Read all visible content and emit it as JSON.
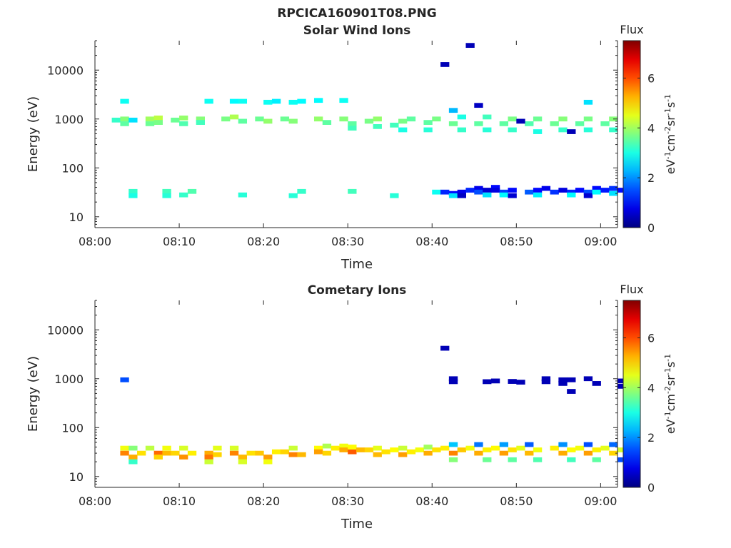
{
  "figure_title": "RPCICA160901T08.PNG",
  "chart_data": [
    {
      "type": "heatmap",
      "title": "Solar Wind Ions",
      "xlabel": "Time",
      "ylabel": "Energy (eV)",
      "yscale": "log",
      "xlim": [
        "08:00",
        "09:02"
      ],
      "ylim": [
        6,
        40000
      ],
      "xticks": [
        "08:00",
        "08:10",
        "08:20",
        "08:30",
        "08:40",
        "08:50",
        "09:00"
      ],
      "yticks": [
        "10",
        "100",
        "1000",
        "10000"
      ],
      "colorbar": {
        "title": "Flux",
        "label": "eV-1cm-2sr-1s-1",
        "range": [
          0,
          7.5
        ],
        "ticks": [
          "0",
          "2",
          "4",
          "6"
        ],
        "colormap": "jet"
      },
      "cells": [
        [
          "08:02",
          950,
          3.2
        ],
        [
          "08:03",
          1000,
          3.8
        ],
        [
          "08:03",
          800,
          3.5
        ],
        [
          "08:03",
          2300,
          2.9
        ],
        [
          "08:04",
          950,
          2.6
        ],
        [
          "08:06",
          1000,
          4.0
        ],
        [
          "08:06",
          800,
          3.6
        ],
        [
          "08:07",
          1050,
          4.2
        ],
        [
          "08:07",
          850,
          3.7
        ],
        [
          "08:09",
          950,
          3.6
        ],
        [
          "08:10",
          1050,
          3.9
        ],
        [
          "08:10",
          800,
          3.4
        ],
        [
          "08:12",
          1000,
          3.8
        ],
        [
          "08:12",
          850,
          3.3
        ],
        [
          "08:13",
          2300,
          2.9
        ],
        [
          "08:15",
          1000,
          3.7
        ],
        [
          "08:16",
          1100,
          4.1
        ],
        [
          "08:16",
          2300,
          2.8
        ],
        [
          "08:17",
          2300,
          2.9
        ],
        [
          "08:17",
          900,
          3.5
        ],
        [
          "08:19",
          1000,
          3.6
        ],
        [
          "08:20",
          900,
          3.9
        ],
        [
          "08:20",
          2200,
          2.9
        ],
        [
          "08:21",
          2300,
          2.7
        ],
        [
          "08:22",
          1000,
          3.6
        ],
        [
          "08:23",
          900,
          3.8
        ],
        [
          "08:23",
          2200,
          2.9
        ],
        [
          "08:24",
          2300,
          2.8
        ],
        [
          "08:26",
          1000,
          3.9
        ],
        [
          "08:26",
          2400,
          2.8
        ],
        [
          "08:27",
          850,
          3.5
        ],
        [
          "08:29",
          1000,
          3.8
        ],
        [
          "08:29",
          2400,
          2.9
        ],
        [
          "08:30",
          800,
          3.5
        ],
        [
          "08:30",
          650,
          3.3
        ],
        [
          "08:32",
          900,
          3.7
        ],
        [
          "08:33",
          700,
          3.3
        ],
        [
          "08:33",
          1000,
          3.9
        ],
        [
          "08:35",
          750,
          3.3
        ],
        [
          "08:36",
          900,
          3.7
        ],
        [
          "08:36",
          600,
          3.0
        ],
        [
          "08:37",
          1000,
          3.5
        ],
        [
          "08:39",
          850,
          3.5
        ],
        [
          "08:39",
          600,
          3.1
        ],
        [
          "08:40",
          1000,
          3.7
        ],
        [
          "08:42",
          800,
          3.6
        ],
        [
          "08:43",
          600,
          3.2
        ],
        [
          "08:43",
          1100,
          3.0
        ],
        [
          "08:42",
          1500,
          2.3
        ],
        [
          "08:45",
          800,
          3.5
        ],
        [
          "08:46",
          600,
          3.1
        ],
        [
          "08:46",
          1100,
          3.3
        ],
        [
          "08:45",
          1900,
          0.5
        ],
        [
          "08:48",
          800,
          3.5
        ],
        [
          "08:49",
          1000,
          3.7
        ],
        [
          "08:49",
          600,
          3.2
        ],
        [
          "08:51",
          800,
          3.4
        ],
        [
          "08:52",
          1000,
          3.6
        ],
        [
          "08:52",
          550,
          3.0
        ],
        [
          "08:50",
          900,
          0.4
        ],
        [
          "08:54",
          800,
          3.6
        ],
        [
          "08:55",
          1000,
          3.8
        ],
        [
          "08:55",
          600,
          3.2
        ],
        [
          "08:56",
          550,
          0.4
        ],
        [
          "08:57",
          800,
          3.5
        ],
        [
          "08:58",
          1000,
          3.7
        ],
        [
          "08:58",
          600,
          3.1
        ],
        [
          "08:58",
          2200,
          2.6
        ],
        [
          "09:00",
          800,
          3.5
        ],
        [
          "09:01",
          1000,
          3.8
        ],
        [
          "09:01",
          600,
          3.2
        ],
        [
          "08:41",
          13000,
          0.4
        ],
        [
          "08:44",
          32000,
          0.4
        ],
        [
          "08:04",
          33,
          3.2
        ],
        [
          "08:04",
          27,
          3.0
        ],
        [
          "08:08",
          33,
          3.3
        ],
        [
          "08:08",
          27,
          3.1
        ],
        [
          "08:10",
          28,
          3.2
        ],
        [
          "08:11",
          33,
          3.4
        ],
        [
          "08:17",
          28,
          3.1
        ],
        [
          "08:23",
          27,
          3.1
        ],
        [
          "08:24",
          33,
          3.2
        ],
        [
          "08:30",
          33,
          3.3
        ],
        [
          "08:35",
          27,
          3.1
        ],
        [
          "08:40",
          32,
          2.9
        ],
        [
          "08:41",
          32,
          1.2
        ],
        [
          "08:42",
          30,
          1.0
        ],
        [
          "08:42",
          27,
          2.6
        ],
        [
          "08:43",
          32,
          0.8
        ],
        [
          "08:43",
          27,
          0.5
        ],
        [
          "08:44",
          35,
          1.2
        ],
        [
          "08:45",
          38,
          0.8
        ],
        [
          "08:45",
          32,
          1.5
        ],
        [
          "08:46",
          35,
          0.6
        ],
        [
          "08:46",
          28,
          2.6
        ],
        [
          "08:47",
          40,
          1.0
        ],
        [
          "08:47",
          35,
          0.7
        ],
        [
          "08:48",
          32,
          1.4
        ],
        [
          "08:48",
          28,
          2.8
        ],
        [
          "08:49",
          35,
          1.0
        ],
        [
          "08:49",
          27,
          0.6
        ],
        [
          "08:51",
          32,
          1.6
        ],
        [
          "08:52",
          35,
          1.0
        ],
        [
          "08:52",
          28,
          2.7
        ],
        [
          "08:53",
          38,
          0.8
        ],
        [
          "08:54",
          32,
          1.3
        ],
        [
          "08:55",
          35,
          0.7
        ],
        [
          "08:56",
          32,
          1.2
        ],
        [
          "08:56",
          28,
          2.8
        ],
        [
          "08:57",
          35,
          1.0
        ],
        [
          "08:58",
          32,
          1.5
        ],
        [
          "08:58",
          27,
          0.6
        ],
        [
          "08:59",
          38,
          1.0
        ],
        [
          "08:59",
          32,
          2.8
        ],
        [
          "09:00",
          35,
          1.1
        ],
        [
          "09:01",
          38,
          1.3
        ],
        [
          "09:01",
          30,
          2.6
        ],
        [
          "09:02",
          35,
          1.0
        ]
      ]
    },
    {
      "type": "heatmap",
      "title": "Cometary Ions",
      "xlabel": "Time",
      "ylabel": "Energy (eV)",
      "yscale": "log",
      "xlim": [
        "08:00",
        "09:02"
      ],
      "ylim": [
        6,
        40000
      ],
      "xticks": [
        "08:00",
        "08:10",
        "08:20",
        "08:30",
        "08:40",
        "08:50",
        "09:00"
      ],
      "yticks": [
        "10",
        "100",
        "1000",
        "10000"
      ],
      "colorbar": {
        "title": "Flux",
        "label": "eV-1cm-2sr-1s-1",
        "range": [
          0,
          7.5
        ],
        "ticks": [
          "0",
          "2",
          "4",
          "6"
        ],
        "colormap": "jet"
      },
      "cells": [
        [
          "08:03",
          950,
          1.5
        ],
        [
          "08:03",
          38,
          4.6
        ],
        [
          "08:03",
          30,
          5.6
        ],
        [
          "08:04",
          25,
          5.3
        ],
        [
          "08:04",
          38,
          3.8
        ],
        [
          "08:05",
          30,
          4.9
        ],
        [
          "08:04",
          20,
          3.2
        ],
        [
          "08:06",
          38,
          4.2
        ],
        [
          "08:07",
          30,
          5.8
        ],
        [
          "08:07",
          25,
          5.0
        ],
        [
          "08:08",
          38,
          4.6
        ],
        [
          "08:08",
          30,
          5.2
        ],
        [
          "08:09",
          30,
          5.0
        ],
        [
          "08:10",
          38,
          4.4
        ],
        [
          "08:10",
          25,
          5.5
        ],
        [
          "08:11",
          30,
          4.8
        ],
        [
          "08:13",
          30,
          5.3
        ],
        [
          "08:13",
          25,
          5.7
        ],
        [
          "08:14",
          38,
          4.5
        ],
        [
          "08:13",
          20,
          4.3
        ],
        [
          "08:14",
          28,
          5.0
        ],
        [
          "08:16",
          38,
          4.4
        ],
        [
          "08:16",
          30,
          5.6
        ],
        [
          "08:17",
          25,
          5.2
        ],
        [
          "08:17",
          20,
          4.4
        ],
        [
          "08:18",
          30,
          4.9
        ],
        [
          "08:19",
          30,
          5.1
        ],
        [
          "08:20",
          25,
          5.4
        ],
        [
          "08:20",
          20,
          4.6
        ],
        [
          "08:21",
          32,
          4.8
        ],
        [
          "08:22",
          32,
          5.0
        ],
        [
          "08:23",
          28,
          5.6
        ],
        [
          "08:23",
          38,
          4.3
        ],
        [
          "08:24",
          28,
          5.2
        ],
        [
          "08:26",
          38,
          4.7
        ],
        [
          "08:26",
          32,
          5.4
        ],
        [
          "08:27",
          42,
          4.1
        ],
        [
          "08:27",
          30,
          5.0
        ],
        [
          "08:28",
          38,
          4.8
        ],
        [
          "08:29",
          42,
          4.6
        ],
        [
          "08:29",
          35,
          5.3
        ],
        [
          "08:30",
          32,
          5.9
        ],
        [
          "08:30",
          40,
          4.7
        ],
        [
          "08:31",
          35,
          5.2
        ],
        [
          "08:32",
          35,
          5.0
        ],
        [
          "08:33",
          28,
          5.2
        ],
        [
          "08:33",
          38,
          4.5
        ],
        [
          "08:34",
          32,
          4.9
        ],
        [
          "08:35",
          35,
          4.7
        ],
        [
          "08:36",
          28,
          5.4
        ],
        [
          "08:36",
          38,
          4.3
        ],
        [
          "08:37",
          32,
          4.8
        ],
        [
          "08:38",
          35,
          4.6
        ],
        [
          "08:39",
          30,
          5.3
        ],
        [
          "08:39",
          40,
          4.0
        ],
        [
          "08:40",
          35,
          4.9
        ],
        [
          "08:41",
          38,
          4.8
        ],
        [
          "08:42",
          30,
          5.6
        ],
        [
          "08:42",
          45,
          2.4
        ],
        [
          "08:42",
          22,
          3.8
        ],
        [
          "08:43",
          35,
          5.1
        ],
        [
          "08:44",
          38,
          4.6
        ],
        [
          "08:45",
          30,
          5.3
        ],
        [
          "08:45",
          45,
          1.8
        ],
        [
          "08:46",
          22,
          3.6
        ],
        [
          "08:46",
          35,
          4.8
        ],
        [
          "08:47",
          38,
          4.7
        ],
        [
          "08:48",
          30,
          5.4
        ],
        [
          "08:48",
          45,
          2.1
        ],
        [
          "08:49",
          22,
          3.5
        ],
        [
          "08:49",
          35,
          4.9
        ],
        [
          "08:50",
          38,
          4.5
        ],
        [
          "08:51",
          30,
          5.2
        ],
        [
          "08:51",
          45,
          1.6
        ],
        [
          "08:52",
          22,
          3.4
        ],
        [
          "08:52",
          35,
          4.6
        ],
        [
          "08:54",
          38,
          4.8
        ],
        [
          "08:55",
          30,
          5.3
        ],
        [
          "08:55",
          45,
          2.0
        ],
        [
          "08:56",
          22,
          3.3
        ],
        [
          "08:56",
          35,
          4.7
        ],
        [
          "08:57",
          38,
          4.6
        ],
        [
          "08:58",
          30,
          5.4
        ],
        [
          "08:58",
          45,
          1.5
        ],
        [
          "08:59",
          22,
          3.5
        ],
        [
          "08:59",
          35,
          4.8
        ],
        [
          "09:00",
          38,
          4.5
        ],
        [
          "09:01",
          30,
          5.0
        ],
        [
          "09:01",
          45,
          1.7
        ],
        [
          "09:02",
          22,
          1.5
        ],
        [
          "09:02",
          35,
          4.4
        ],
        [
          "08:41",
          4200,
          0.4
        ],
        [
          "08:42",
          1000,
          0.4
        ],
        [
          "08:42",
          870,
          0.4
        ],
        [
          "08:46",
          870,
          0.4
        ],
        [
          "08:47",
          900,
          0.4
        ],
        [
          "08:49",
          880,
          0.4
        ],
        [
          "08:50",
          850,
          0.4
        ],
        [
          "08:53",
          870,
          0.4
        ],
        [
          "08:53",
          1000,
          0.4
        ],
        [
          "08:55",
          950,
          0.4
        ],
        [
          "08:55",
          800,
          0.4
        ],
        [
          "08:56",
          950,
          0.4
        ],
        [
          "08:56",
          550,
          0.4
        ],
        [
          "08:58",
          1000,
          0.4
        ],
        [
          "08:59",
          800,
          0.4
        ],
        [
          "09:02",
          900,
          0.4
        ],
        [
          "09:02",
          700,
          0.4
        ]
      ]
    }
  ]
}
